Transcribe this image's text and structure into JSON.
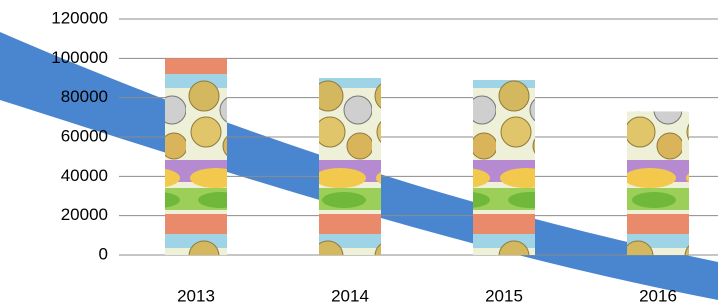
{
  "chart_data": {
    "type": "bar",
    "categories": [
      "2013",
      "2014",
      "2015",
      "2016"
    ],
    "values": [
      100000,
      90000,
      89000,
      73000
    ],
    "ylim": [
      0,
      120000
    ],
    "yticks": [
      0,
      20000,
      40000,
      60000,
      80000,
      100000,
      120000
    ],
    "grid": true
  }
}
